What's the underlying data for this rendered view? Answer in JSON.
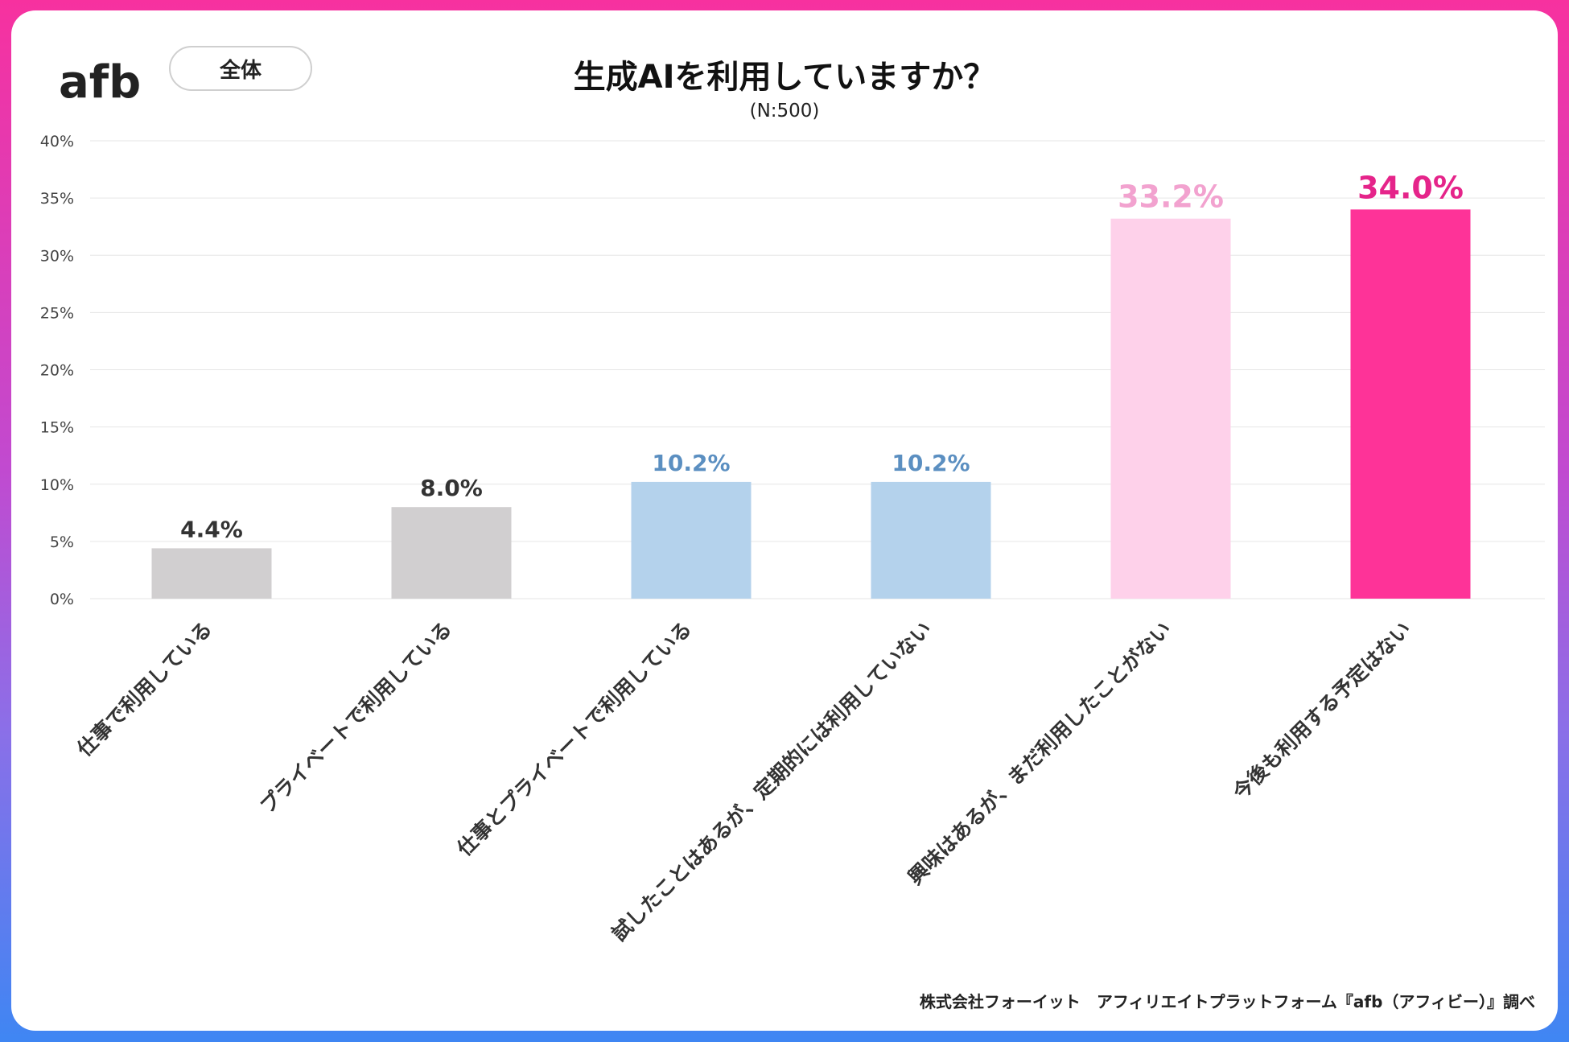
{
  "logo": {
    "text": "afb"
  },
  "filter": {
    "label": "全体"
  },
  "source_note": "株式会社フォーイット　アフィリエイトプラットフォーム『afb（アフィビー）』調べ",
  "chart_data": {
    "type": "bar",
    "title": "生成AIを利用していますか？",
    "subtitle": "(N:500)",
    "xlabel": "",
    "ylabel": "",
    "ylim": [
      0,
      40
    ],
    "yticks": [
      0,
      5,
      10,
      15,
      20,
      25,
      30,
      35,
      40
    ],
    "ytick_labels": [
      "0%",
      "5%",
      "10%",
      "15%",
      "20%",
      "25%",
      "30%",
      "35%",
      "40%"
    ],
    "grid": true,
    "legend": "none",
    "categories": [
      "仕事で利用している",
      "プライベートで利用している",
      "仕事とプライベートで利用している",
      "試したことはあるが、定期的には利用していない",
      "興味はあるが、まだ利用したことがない",
      "今後も利用する予定はない"
    ],
    "values": [
      4.4,
      8.0,
      10.2,
      10.2,
      33.2,
      34.0
    ],
    "value_labels": [
      "4.4%",
      "8.0%",
      "10.2%",
      "10.2%",
      "33.2%",
      "34.0%"
    ],
    "bar_colors": [
      "#d1cfd0",
      "#d1cfd0",
      "#b4d2ec",
      "#b4d2ec",
      "#fed1ea",
      "#fe3398"
    ],
    "label_colors": [
      "#333333",
      "#333333",
      "#5b8fc1",
      "#5b8fc1",
      "#f2a2cf",
      "#e5248a"
    ]
  }
}
